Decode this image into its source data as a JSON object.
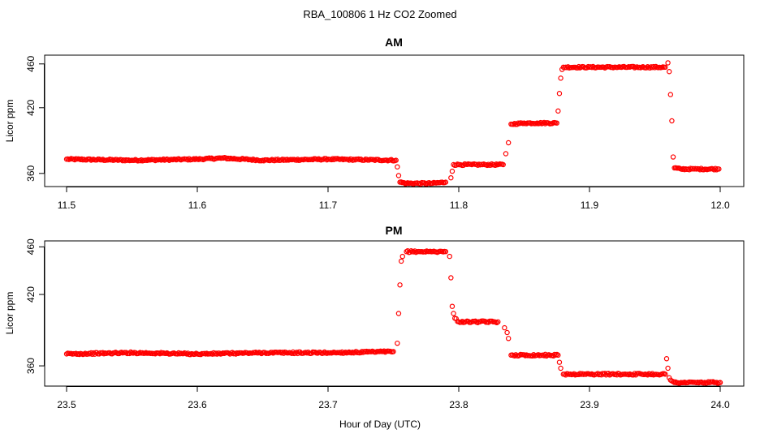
{
  "figure": {
    "title": "RBA_100806  1 Hz CO2 Zoomed",
    "xlabel": "Hour of Day (UTC)"
  },
  "colors": {
    "points": "#ff0000",
    "axes": "#000000",
    "background": "#ffffff"
  },
  "chart_data": [
    {
      "type": "scatter",
      "title": "AM",
      "xlabel": "",
      "ylabel": "Licor ppm",
      "xlim": [
        11.5,
        12.0
      ],
      "ylim": [
        348,
        468
      ],
      "xticks": [
        11.5,
        11.6,
        11.7,
        11.8,
        11.9,
        12.0
      ],
      "xtick_labels": [
        "11.5",
        "11.6",
        "11.7",
        "11.8",
        "11.9",
        "12.0"
      ],
      "yticks": [
        360,
        420,
        460
      ],
      "ytick_labels": [
        "360",
        "420",
        "460"
      ],
      "grid": false,
      "series": [
        {
          "name": "CO2",
          "marker": "open-circle",
          "x": [
            11.5,
            11.55,
            11.6,
            11.62,
            11.65,
            11.7,
            11.752,
            11.753,
            11.754,
            11.755,
            11.76,
            11.77,
            11.78,
            11.79,
            11.794,
            11.795,
            11.796,
            11.8,
            11.81,
            11.82,
            11.834,
            11.836,
            11.838,
            11.84,
            11.85,
            11.86,
            11.875,
            11.876,
            11.877,
            11.878,
            11.879,
            11.88,
            11.9,
            11.92,
            11.94,
            11.958,
            11.96,
            11.961,
            11.962,
            11.963,
            11.964,
            11.965,
            11.97,
            11.98,
            11.999
          ],
          "y": [
            373,
            372,
            373,
            374,
            372,
            373,
            372,
            366,
            358,
            352,
            351,
            351,
            351,
            352,
            356,
            362,
            368,
            368,
            368,
            368,
            368,
            378,
            388,
            405,
            406,
            406,
            406,
            417,
            433,
            447,
            455,
            457,
            457,
            457,
            457,
            457,
            461,
            453,
            432,
            408,
            375,
            365,
            364,
            364,
            364
          ]
        }
      ]
    },
    {
      "type": "scatter",
      "title": "PM",
      "xlabel": "Hour of Day (UTC)",
      "ylabel": "Licor ppm",
      "xlim": [
        23.5,
        24.0
      ],
      "ylim": [
        343,
        465
      ],
      "xticks": [
        23.5,
        23.6,
        23.7,
        23.8,
        23.9,
        24.0
      ],
      "xtick_labels": [
        "23.5",
        "23.6",
        "23.7",
        "23.8",
        "23.9",
        "24.0"
      ],
      "yticks": [
        360,
        420,
        460
      ],
      "ytick_labels": [
        "360",
        "420",
        "460"
      ],
      "grid": false,
      "series": [
        {
          "name": "CO2",
          "marker": "open-circle",
          "x": [
            23.5,
            23.55,
            23.6,
            23.65,
            23.7,
            23.75,
            23.753,
            23.754,
            23.755,
            23.756,
            23.757,
            23.76,
            23.77,
            23.78,
            23.79,
            23.793,
            23.794,
            23.795,
            23.796,
            23.797,
            23.8,
            23.81,
            23.83,
            23.835,
            23.837,
            23.838,
            23.84,
            23.86,
            23.876,
            23.877,
            23.878,
            23.88,
            23.9,
            23.92,
            23.94,
            23.958,
            23.959,
            23.96,
            23.961,
            23.962,
            23.965,
            23.97,
            24.0
          ],
          "y": [
            370,
            371,
            370,
            371,
            371,
            372,
            379,
            404,
            428,
            448,
            452,
            456,
            456,
            456,
            456,
            452,
            434,
            410,
            404,
            400,
            397,
            397,
            397,
            392,
            388,
            383,
            369,
            369,
            369,
            363,
            358,
            353,
            353,
            353,
            353,
            353,
            366,
            358,
            350,
            348,
            346,
            346,
            346
          ]
        }
      ]
    }
  ]
}
